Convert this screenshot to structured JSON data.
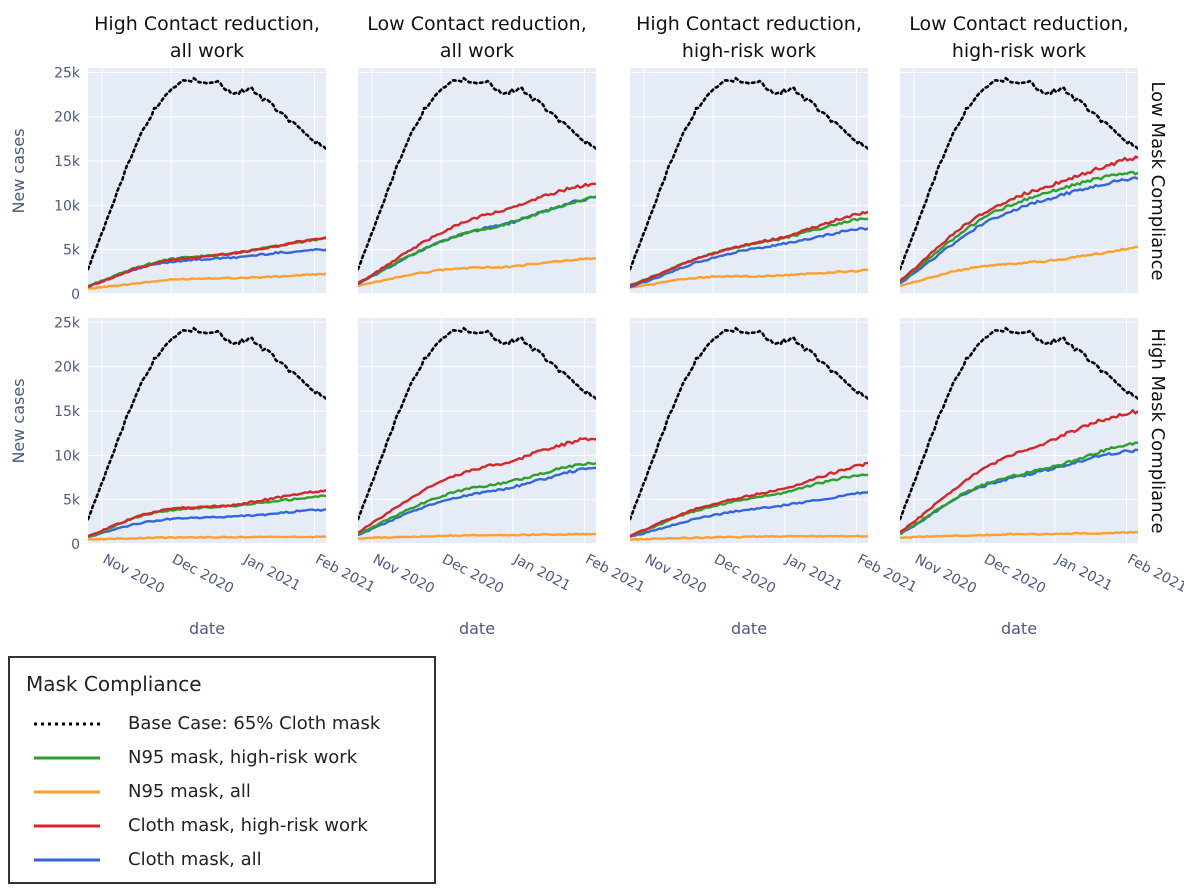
{
  "chart_data": {
    "type": "line",
    "x": [
      "2020-10-26",
      "2020-11-02",
      "2020-11-09",
      "2020-11-16",
      "2020-11-23",
      "2020-11-30",
      "2020-12-07",
      "2020-12-14",
      "2020-12-21",
      "2020-12-28",
      "2021-01-04",
      "2021-01-11",
      "2021-01-18",
      "2021-01-25",
      "2021-02-01",
      "2021-02-06"
    ],
    "xlabel": "date",
    "ylabel": "New cases",
    "ylim": [
      0,
      25500
    ],
    "y_ticks": [
      0,
      5000,
      10000,
      15000,
      20000,
      25000
    ],
    "y_tick_labels": [
      "0",
      "5k",
      "10k",
      "15k",
      "20k",
      "25k"
    ],
    "x_tick_dates": [
      "2020-11-01",
      "2020-12-01",
      "2021-01-01",
      "2021-02-01"
    ],
    "x_tick_labels": [
      "Nov 2020",
      "Dec 2020",
      "Jan 2021",
      "Feb 2021"
    ],
    "grid": true,
    "plot_background": "#e5ecf6",
    "column_titles": [
      [
        "High Contact reduction,",
        "all work"
      ],
      [
        "Low Contact reduction,",
        "all work"
      ],
      [
        "High Contact reduction,",
        "high-risk work"
      ],
      [
        "Low Contact reduction,",
        "high-risk work"
      ]
    ],
    "row_titles": [
      "Low Mask Compliance",
      "High Mask Compliance"
    ],
    "legend": {
      "title": "Mask Compliance",
      "placement": "bottom-left",
      "entries": [
        {
          "key": "base",
          "label": "Base Case: 65% Cloth mask",
          "color": "#000000",
          "dash": "dot"
        },
        {
          "key": "n95_hr",
          "label": "N95 mask, high-risk work",
          "color": "#2ca02c",
          "dash": "solid"
        },
        {
          "key": "n95_all",
          "label": "N95 mask, all",
          "color": "#ff9f2e",
          "dash": "solid"
        },
        {
          "key": "cloth_hr",
          "label": "Cloth mask, high-risk work",
          "color": "#d62728",
          "dash": "solid"
        },
        {
          "key": "cloth_all",
          "label": "Cloth mask, all",
          "color": "#3366dd",
          "dash": "solid"
        }
      ]
    },
    "base_case": [
      2800,
      7500,
      12500,
      17000,
      20500,
      23000,
      24300,
      24100,
      23800,
      22600,
      23200,
      21800,
      20300,
      18800,
      17300,
      16400
    ],
    "panels": [
      {
        "row": 0,
        "col": 0,
        "series": {
          "n95_hr": [
            900,
            1600,
            2300,
            3000,
            3500,
            3900,
            4100,
            4250,
            4400,
            4600,
            4900,
            5200,
            5500,
            5800,
            6100,
            6300
          ],
          "n95_all": [
            600,
            800,
            1000,
            1200,
            1400,
            1600,
            1700,
            1750,
            1800,
            1800,
            1850,
            1900,
            2000,
            2100,
            2200,
            2300
          ],
          "cloth_hr": [
            800,
            1500,
            2200,
            2900,
            3400,
            3800,
            4000,
            4200,
            4400,
            4600,
            4900,
            5200,
            5500,
            5900,
            6200,
            6400
          ],
          "cloth_all": [
            900,
            1500,
            2200,
            2800,
            3300,
            3600,
            3800,
            3900,
            4000,
            4100,
            4300,
            4500,
            4700,
            4800,
            5000,
            5000
          ]
        }
      },
      {
        "row": 0,
        "col": 1,
        "series": {
          "n95_hr": [
            1300,
            2200,
            3200,
            4200,
            5000,
            5800,
            6500,
            7000,
            7400,
            7800,
            8400,
            9000,
            9600,
            10100,
            10600,
            11000
          ],
          "n95_all": [
            900,
            1300,
            1700,
            2100,
            2400,
            2700,
            2850,
            2950,
            3000,
            3050,
            3200,
            3400,
            3600,
            3800,
            3950,
            4000
          ],
          "cloth_hr": [
            1200,
            2300,
            3500,
            4700,
            5800,
            6800,
            7700,
            8400,
            9000,
            9400,
            10000,
            10700,
            11300,
            11900,
            12300,
            12400
          ],
          "cloth_all": [
            1100,
            2100,
            3100,
            4100,
            5000,
            5800,
            6500,
            7000,
            7500,
            7800,
            8300,
            9000,
            9600,
            10200,
            10700,
            10900
          ]
        }
      },
      {
        "row": 0,
        "col": 2,
        "series": {
          "n95_hr": [
            1000,
            1700,
            2400,
            3200,
            3900,
            4500,
            5000,
            5400,
            5800,
            6100,
            6500,
            7000,
            7500,
            8000,
            8400,
            8500
          ],
          "n95_all": [
            700,
            1000,
            1300,
            1600,
            1800,
            1950,
            2000,
            2000,
            2000,
            2050,
            2150,
            2300,
            2400,
            2500,
            2600,
            2700
          ],
          "cloth_hr": [
            900,
            1600,
            2400,
            3200,
            3900,
            4500,
            5000,
            5500,
            5900,
            6200,
            6700,
            7300,
            7900,
            8500,
            9000,
            9300
          ],
          "cloth_all": [
            800,
            1400,
            2100,
            2800,
            3500,
            4000,
            4500,
            4900,
            5200,
            5500,
            5800,
            6200,
            6600,
            7000,
            7300,
            7400
          ]
        }
      },
      {
        "row": 0,
        "col": 3,
        "series": {
          "n95_hr": [
            1400,
            2800,
            4300,
            5800,
            7200,
            8400,
            9400,
            10100,
            10800,
            11300,
            11900,
            12400,
            12900,
            13300,
            13600,
            13700
          ],
          "n95_all": [
            900,
            1400,
            1900,
            2400,
            2800,
            3100,
            3300,
            3400,
            3600,
            3700,
            3900,
            4200,
            4500,
            4800,
            5100,
            5300
          ],
          "cloth_hr": [
            1500,
            3000,
            4700,
            6300,
            7800,
            9000,
            10000,
            10800,
            11500,
            12000,
            12700,
            13300,
            14000,
            14600,
            15200,
            15400
          ],
          "cloth_all": [
            1200,
            2500,
            3900,
            5300,
            6600,
            7800,
            8700,
            9400,
            10100,
            10600,
            11200,
            11700,
            12200,
            12600,
            12900,
            13000
          ]
        }
      },
      {
        "row": 1,
        "col": 0,
        "series": {
          "n95_hr": [
            800,
            1500,
            2300,
            3000,
            3500,
            3800,
            4000,
            4100,
            4200,
            4300,
            4500,
            4700,
            4900,
            5100,
            5300,
            5400
          ],
          "n95_all": [
            500,
            550,
            600,
            650,
            700,
            720,
            740,
            750,
            760,
            770,
            780,
            780,
            790,
            800,
            800,
            800
          ],
          "cloth_hr": [
            900,
            1600,
            2400,
            3100,
            3600,
            3900,
            4100,
            4200,
            4300,
            4400,
            4700,
            5000,
            5300,
            5600,
            5900,
            6100
          ],
          "cloth_all": [
            800,
            1300,
            1800,
            2300,
            2600,
            2800,
            2900,
            3000,
            3000,
            3100,
            3200,
            3300,
            3500,
            3700,
            3800,
            3900
          ]
        }
      },
      {
        "row": 1,
        "col": 1,
        "series": {
          "n95_hr": [
            1100,
            2000,
            2900,
            3800,
            4600,
            5300,
            5900,
            6300,
            6600,
            6900,
            7300,
            7800,
            8300,
            8700,
            9000,
            9100
          ],
          "n95_all": [
            600,
            700,
            750,
            800,
            850,
            900,
            950,
            980,
            1000,
            1000,
            1020,
            1050,
            1080,
            1100,
            1100,
            1100
          ],
          "cloth_hr": [
            1300,
            2500,
            3700,
            4900,
            6000,
            6900,
            7700,
            8300,
            8800,
            9100,
            9600,
            10300,
            10900,
            11400,
            11900,
            11800
          ],
          "cloth_all": [
            1000,
            1800,
            2600,
            3400,
            4100,
            4700,
            5200,
            5600,
            5900,
            6200,
            6600,
            7100,
            7600,
            8100,
            8500,
            8600
          ]
        }
      },
      {
        "row": 1,
        "col": 2,
        "series": {
          "n95_hr": [
            900,
            1600,
            2300,
            3100,
            3700,
            4200,
            4600,
            5000,
            5300,
            5600,
            6000,
            6500,
            7000,
            7400,
            7700,
            7800
          ],
          "n95_all": [
            500,
            550,
            600,
            650,
            700,
            750,
            780,
            800,
            820,
            840,
            860,
            870,
            880,
            890,
            900,
            900
          ],
          "cloth_hr": [
            900,
            1700,
            2500,
            3200,
            3900,
            4400,
            4900,
            5300,
            5700,
            6000,
            6500,
            7100,
            7700,
            8300,
            8800,
            9100
          ],
          "cloth_all": [
            800,
            1300,
            1800,
            2300,
            2800,
            3200,
            3500,
            3800,
            4000,
            4200,
            4500,
            4800,
            5100,
            5400,
            5700,
            5800
          ]
        }
      },
      {
        "row": 1,
        "col": 3,
        "series": {
          "n95_hr": [
            1200,
            2300,
            3500,
            4700,
            5800,
            6600,
            7200,
            7700,
            8100,
            8500,
            9000,
            9600,
            10200,
            10800,
            11200,
            11400
          ],
          "n95_all": [
            700,
            800,
            850,
            900,
            950,
            1000,
            1050,
            1100,
            1100,
            1100,
            1150,
            1200,
            1200,
            1250,
            1300,
            1300
          ],
          "cloth_hr": [
            1300,
            2700,
            4200,
            5700,
            7100,
            8300,
            9300,
            10100,
            10800,
            11400,
            12200,
            13000,
            13700,
            14300,
            14800,
            15000
          ],
          "cloth_all": [
            1100,
            2200,
            3400,
            4600,
            5600,
            6400,
            7000,
            7500,
            7900,
            8300,
            8800,
            9300,
            9800,
            10200,
            10500,
            10600
          ]
        }
      }
    ]
  }
}
